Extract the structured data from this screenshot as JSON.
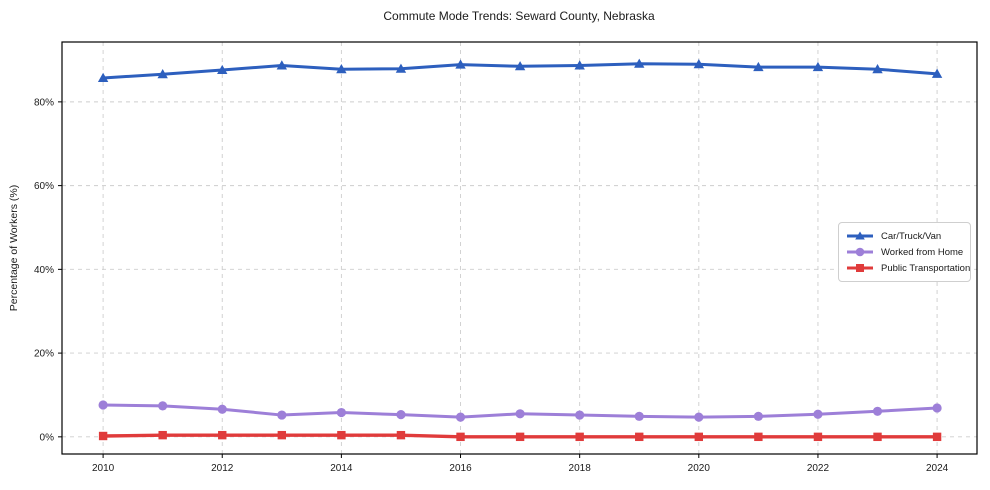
{
  "chart_data": {
    "type": "line",
    "title": "Commute Mode Trends: Seward County, Nebraska",
    "xlabel": "",
    "ylabel": "Percentage of Workers (%)",
    "x": [
      2010,
      2011,
      2012,
      2013,
      2014,
      2015,
      2016,
      2017,
      2018,
      2019,
      2020,
      2021,
      2022,
      2023,
      2024
    ],
    "x_ticks": [
      2010,
      2012,
      2014,
      2016,
      2018,
      2020,
      2022,
      2024
    ],
    "x_tick_labels": [
      "2010",
      "2012",
      "2014",
      "2016",
      "2018",
      "2020",
      "2022",
      "2024"
    ],
    "y_ticks": [
      0,
      20,
      40,
      60,
      80
    ],
    "y_tick_labels": [
      "0%",
      "20%",
      "40%",
      "60%",
      "80%"
    ],
    "xlim": [
      2009.31,
      2024.67
    ],
    "ylim": [
      -4.1,
      94.3
    ],
    "grid": true,
    "grid_style": "dashed",
    "grid_color": "#cdcdcd",
    "legend_position": "center-right",
    "series": [
      {
        "name": "Car/Truck/Van",
        "slug": "car-truck-van",
        "marker": "triangle",
        "color": "#2d5fbe",
        "values": [
          85.7,
          86.6,
          87.6,
          88.7,
          87.8,
          87.9,
          88.9,
          88.5,
          88.7,
          89.1,
          89.0,
          88.3,
          88.3,
          87.8,
          86.7
        ]
      },
      {
        "name": "Worked from Home",
        "slug": "worked-from-home",
        "marker": "circle",
        "color": "#9d7fd8",
        "values": [
          7.6,
          7.4,
          6.6,
          5.2,
          5.8,
          5.3,
          4.7,
          5.5,
          5.2,
          4.9,
          4.7,
          4.9,
          5.4,
          6.1,
          6.9
        ]
      },
      {
        "name": "Public Transportation",
        "slug": "public-transportation",
        "marker": "square",
        "color": "#e03b3b",
        "values": [
          0.2,
          0.4,
          0.4,
          0.4,
          0.4,
          0.4,
          0.0,
          0.0,
          0.0,
          0.0,
          0.0,
          0.0,
          0.0,
          0.0,
          0.0
        ]
      }
    ]
  }
}
